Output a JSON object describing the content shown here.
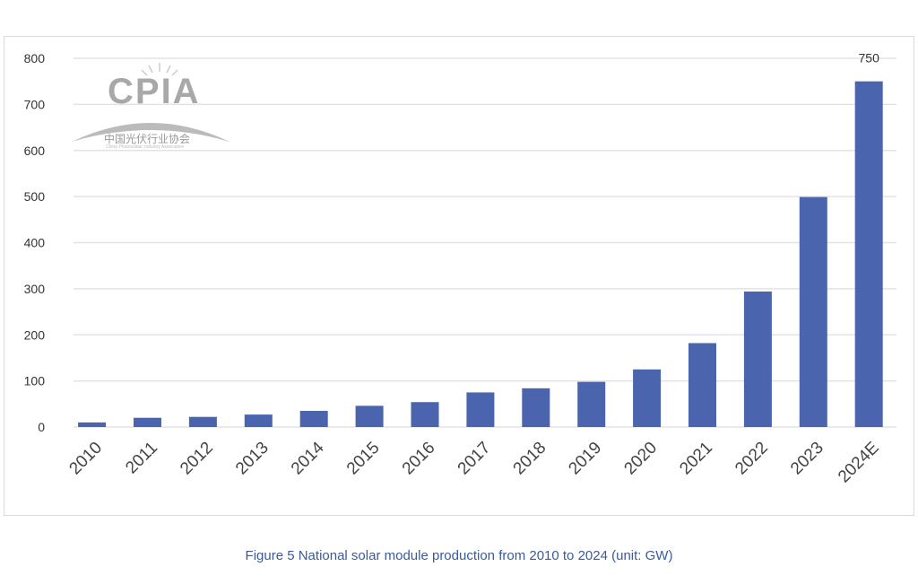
{
  "chart_data": {
    "type": "bar",
    "title": "",
    "xlabel": "",
    "ylabel": "",
    "categories": [
      "2010",
      "2011",
      "2012",
      "2013",
      "2014",
      "2015",
      "2016",
      "2017",
      "2018",
      "2019",
      "2020",
      "2021",
      "2022",
      "2023",
      "2024E"
    ],
    "values": [
      10,
      20,
      22,
      27,
      35,
      46,
      54,
      75,
      84,
      98,
      125,
      182,
      294,
      499,
      750
    ],
    "data_labels": {
      "2024E": "750"
    },
    "ylim": [
      0,
      800
    ],
    "yticks": [
      0,
      100,
      200,
      300,
      400,
      500,
      600,
      700,
      800
    ],
    "grid": true,
    "bar_color": "#4a64ad",
    "legend": "none"
  },
  "caption": "Figure 5 National solar module production from 2010 to 2024 (unit: GW)",
  "logo": {
    "main": "CPIA",
    "cn": "中国光伏行业协会",
    "en": "China Photovoltaic Industry Association"
  }
}
